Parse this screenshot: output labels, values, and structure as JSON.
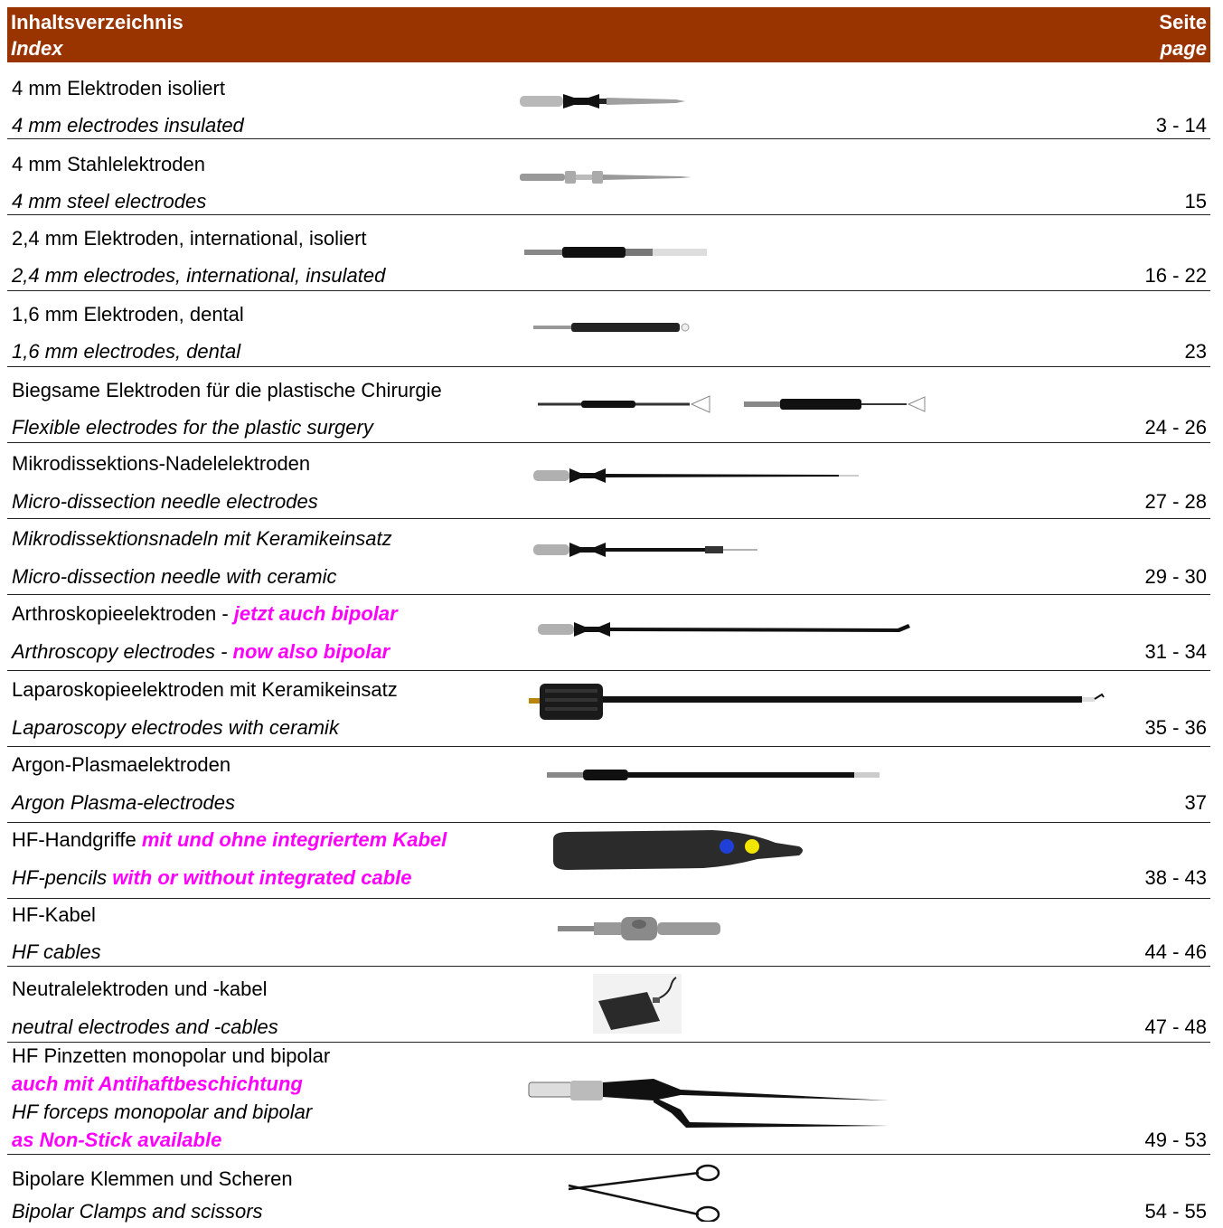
{
  "header": {
    "title_de": "Inhaltsverzeichnis",
    "title_en": "Index",
    "page_de": "Seite",
    "page_en": "page"
  },
  "entries": [
    {
      "de": "4 mm Elektroden isoliert",
      "en": "4 mm electrodes insulated",
      "page": "3 - 14"
    },
    {
      "de": "4 mm Stahlelektroden",
      "en": "4 mm steel electrodes",
      "page": "15"
    },
    {
      "de": "2,4 mm Elektroden, international, isoliert",
      "en": "2,4 mm electrodes, international, insulated",
      "page": "16 - 22"
    },
    {
      "de": "1,6 mm Elektroden, dental",
      "en": "1,6 mm electrodes, dental",
      "page": "23"
    },
    {
      "de": "Biegsame Elektroden für die plastische Chirurgie",
      "en": "Flexible electrodes for the plastic surgery",
      "page": "24 - 26"
    },
    {
      "de": "Mikrodissektions-Nadelelektroden",
      "en": "Micro-dissection needle electrodes",
      "page": "27 - 28"
    },
    {
      "de": "Mikrodissektionsnadeln mit Keramikeinsatz",
      "en": "Micro-dissection needle with ceramic",
      "page": "29 - 30"
    },
    {
      "de": "Arthroskopieelektroden - ",
      "de_highlight": "jetzt auch  bipolar",
      "en": "Arthroscopy electrodes - ",
      "en_highlight": " now also bipolar",
      "page": "31 - 34"
    },
    {
      "de": "Laparoskopieelektroden mit Keramikeinsatz",
      "en": "Laparoscopy electrodes with ceramik",
      "page": "35 - 36"
    },
    {
      "de": "Argon-Plasmaelektroden",
      "en": "Argon Plasma-electrodes",
      "page": "37"
    },
    {
      "de": "HF-Handgriffe ",
      "de_highlight": "mit und ohne integriertem Kabel",
      "en": "HF-pencils ",
      "en_highlight": " with or without integrated cable",
      "page": "38 - 43"
    },
    {
      "de": "HF-Kabel",
      "en": "HF cables",
      "page": "44 - 46"
    },
    {
      "de": "Neutralelektroden und -kabel",
      "en": "neutral electrodes and -cables",
      "page": "47 - 48"
    },
    {
      "de": "HF Pinzetten monopolar und bipolar",
      "de_highlight": "auch mit Antihaftbeschichtung",
      "en": "HF forceps monopolar and bipolar",
      "en_highlight": "as Non-Stick available",
      "page": "49 - 53"
    },
    {
      "de": "Bipolare Klemmen und Scheren",
      "en": "Bipolar Clamps and scissors",
      "page": "54 - 55"
    }
  ]
}
